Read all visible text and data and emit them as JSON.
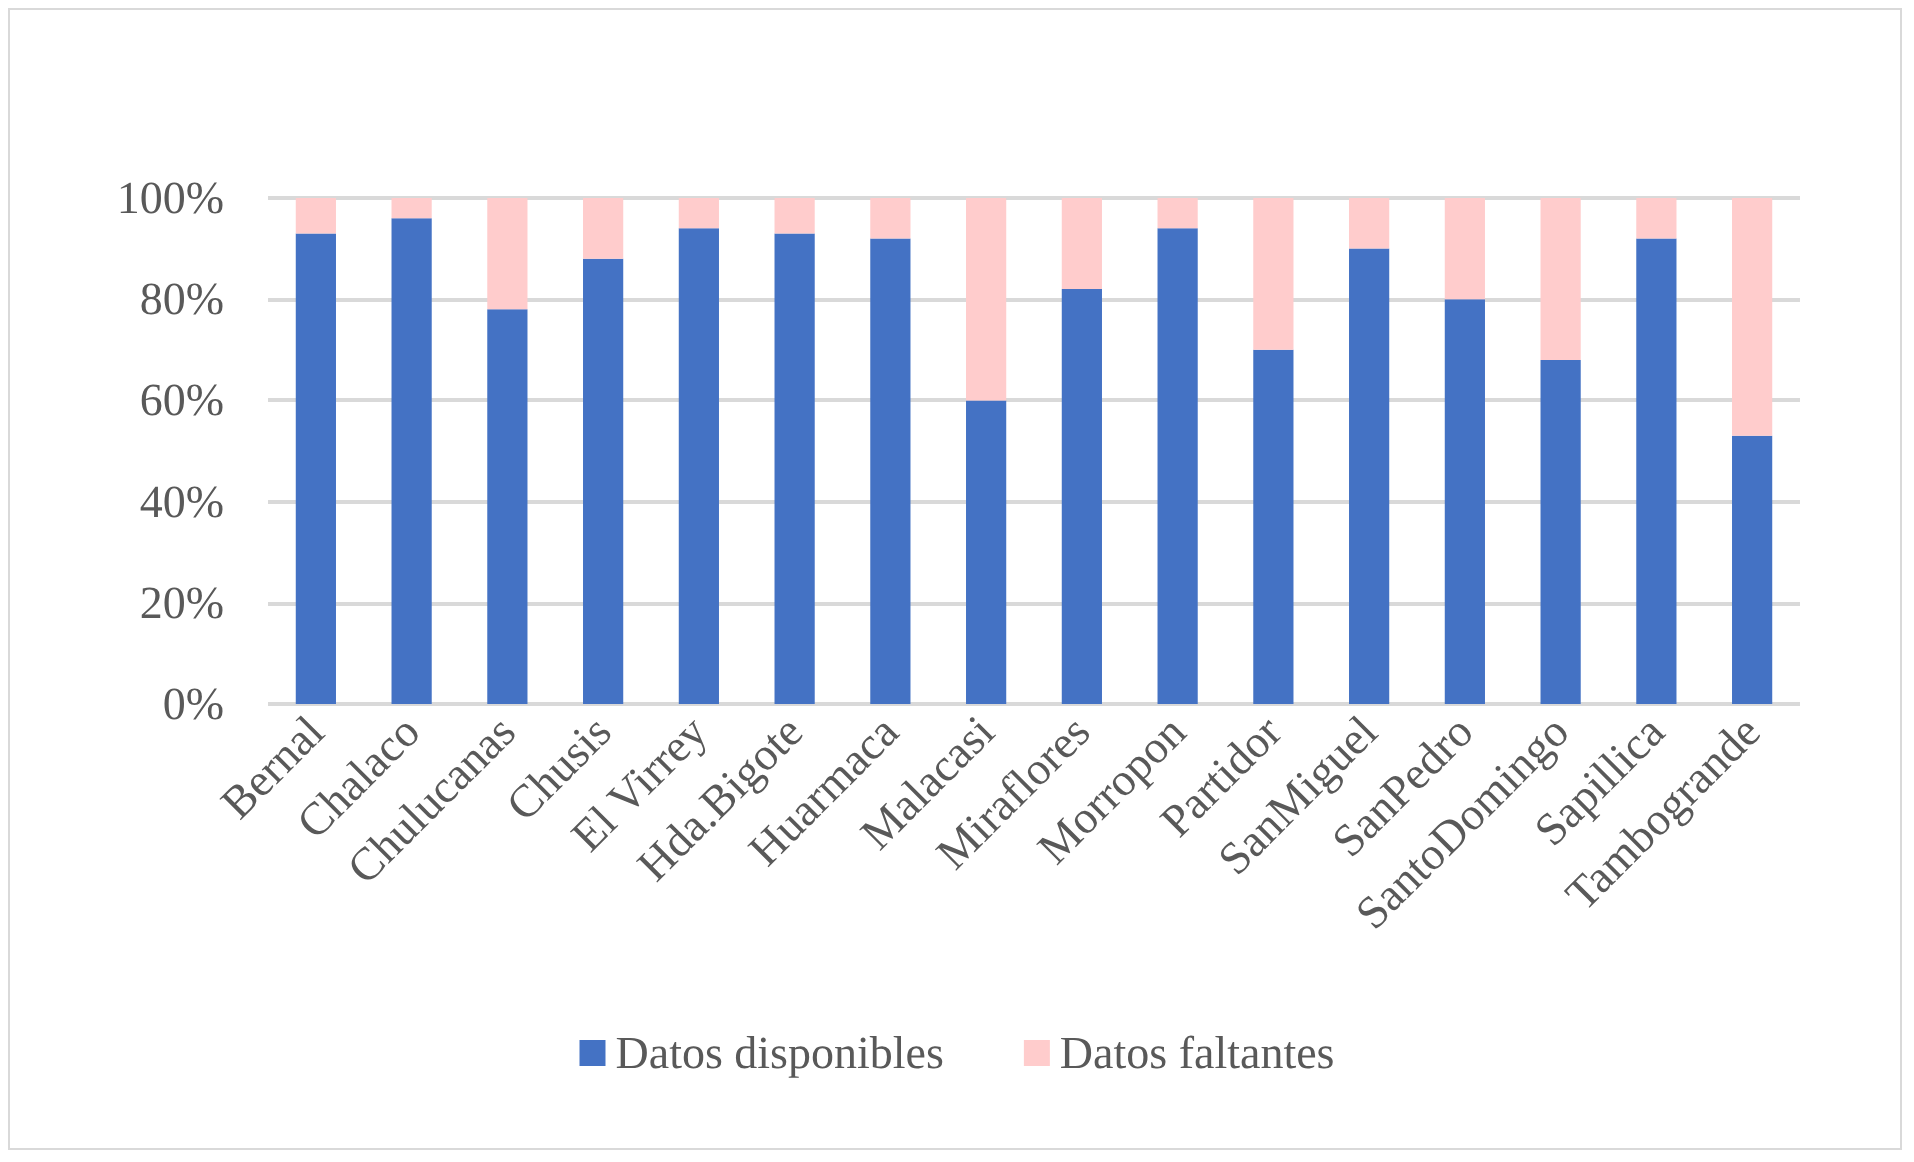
{
  "chart_data": {
    "type": "bar",
    "stacked": true,
    "categories": [
      "Bernal",
      "Chalaco",
      "Chulucanas",
      "Chusis",
      "El Virrey",
      "Hda.Bigote",
      "Huarmaca",
      "Malacasi",
      "Miraflores",
      "Morropon",
      "Partidor",
      "SanMiguel",
      "SanPedro",
      "SantoDomingo",
      "Sapillica",
      "Tambogrande"
    ],
    "series": [
      {
        "name": "Datos disponibles",
        "color": "#4472c4",
        "values": [
          93,
          96,
          78,
          88,
          94,
          93,
          92,
          60,
          82,
          94,
          70,
          90,
          80,
          68,
          92,
          53
        ]
      },
      {
        "name": "Datos faltantes",
        "color": "#ffcccc",
        "values": [
          7,
          4,
          22,
          12,
          6,
          7,
          8,
          40,
          18,
          6,
          30,
          10,
          20,
          32,
          8,
          47
        ]
      }
    ],
    "ylim": [
      0,
      100
    ],
    "yticks": [
      {
        "value": 0,
        "label": "0%"
      },
      {
        "value": 20,
        "label": "20%"
      },
      {
        "value": 40,
        "label": "40%"
      },
      {
        "value": 60,
        "label": "60%"
      },
      {
        "value": 80,
        "label": "80%"
      },
      {
        "value": 100,
        "label": "100%"
      }
    ],
    "grid": "y",
    "legend": "bottom"
  }
}
